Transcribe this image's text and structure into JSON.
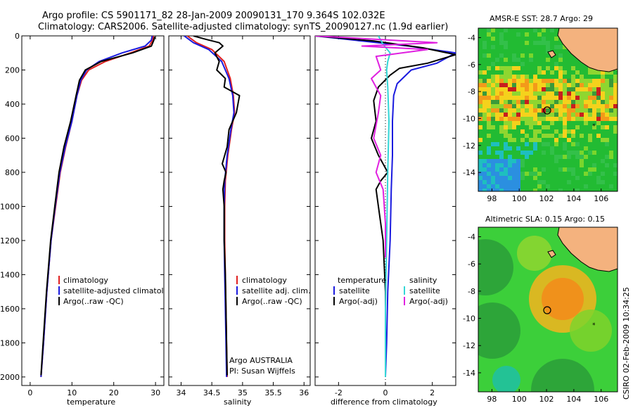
{
  "header": {
    "line1": "Argo profile: CS 5901171_82 28-Jan-2009 20090131_170 9.364S 102.032E",
    "line2": "Climatology: CARS2006. Satellite-adjusted climatology: synTS_20090127.nc (1.9d earlier)"
  },
  "side_label": "CSIRO 02-Feb-2009 10:34:25",
  "colors": {
    "clim": "#e02020",
    "sat": "#1a1adf",
    "argo": "#000000",
    "sal_sat": "#33d6d6",
    "sal_argo": "#e020e0"
  },
  "chart_data": [
    {
      "type": "line",
      "id": "temperature",
      "xlabel": "temperature",
      "xlim": [
        -2,
        32
      ],
      "ylim": [
        2050,
        0
      ],
      "xticks": [
        0,
        10,
        20,
        30
      ],
      "yticks": [
        0,
        200,
        400,
        600,
        800,
        1000,
        1200,
        1400,
        1600,
        1800,
        2000
      ],
      "legend": [
        "climatology",
        "satellite-adjusted climatology",
        "Argo(..raw -QC)"
      ],
      "series": [
        {
          "name": "climatology",
          "color_key": "clim",
          "x": [
            29.5,
            29.3,
            28.5,
            24,
            18,
            14,
            12.3,
            11.2,
            10,
            8.5,
            7.2,
            6.1,
            5,
            4,
            3.2,
            2.6
          ],
          "y": [
            0,
            25,
            60,
            100,
            150,
            200,
            260,
            350,
            500,
            650,
            800,
            1000,
            1200,
            1500,
            1800,
            2000
          ]
        },
        {
          "name": "satellite-adjusted climatology",
          "color_key": "sat",
          "x": [
            29.2,
            29,
            27.5,
            22,
            16.5,
            13.5,
            12.1,
            11.2,
            10,
            8.4,
            7.1,
            6,
            5,
            4,
            3.2,
            2.6
          ],
          "y": [
            0,
            25,
            60,
            100,
            150,
            200,
            260,
            350,
            500,
            650,
            800,
            1000,
            1200,
            1500,
            1800,
            2000
          ]
        },
        {
          "name": "Argo(..raw -QC)",
          "color_key": "argo",
          "x": [
            29.8,
            29.6,
            29,
            24.5,
            17,
            13.2,
            11.8,
            11,
            9.7,
            8.1,
            6.9,
            5.9,
            4.9,
            3.9,
            3.1,
            2.6
          ],
          "y": [
            5,
            25,
            60,
            100,
            150,
            200,
            260,
            350,
            500,
            650,
            800,
            1000,
            1200,
            1500,
            1800,
            1990
          ]
        }
      ]
    },
    {
      "type": "line",
      "id": "salinity",
      "xlabel": "salinity",
      "xlim": [
        33.8,
        36.1
      ],
      "ylim": [
        2050,
        0
      ],
      "xticks": [
        34,
        34.5,
        35,
        35.5,
        36
      ],
      "legend": [
        "climatology",
        "satellite adj. clim.",
        "Argo(..raw -QC)"
      ],
      "annotation": [
        "Argo AUSTRALIA",
        "PI: Susan Wijffels"
      ],
      "series": [
        {
          "name": "climatology",
          "color_key": "clim",
          "x": [
            34.1,
            34.25,
            34.5,
            34.7,
            34.8,
            34.85,
            34.87,
            34.82,
            34.76,
            34.72,
            34.71,
            34.71,
            34.72,
            34.73,
            34.74,
            34.75
          ],
          "y": [
            0,
            40,
            80,
            150,
            250,
            350,
            450,
            550,
            700,
            850,
            1000,
            1200,
            1400,
            1600,
            1800,
            2000
          ]
        },
        {
          "name": "satellite adj. clim.",
          "color_key": "sat",
          "x": [
            34.05,
            34.2,
            34.45,
            34.66,
            34.78,
            34.84,
            34.86,
            34.81,
            34.75,
            34.71,
            34.7,
            34.7,
            34.71,
            34.72,
            34.73,
            34.74
          ],
          "y": [
            0,
            40,
            80,
            150,
            250,
            350,
            450,
            550,
            700,
            850,
            1000,
            1200,
            1400,
            1600,
            1800,
            2000
          ]
        },
        {
          "name": "Argo(..raw -QC)",
          "color_key": "argo",
          "x": [
            34.2,
            34.4,
            34.62,
            34.68,
            34.55,
            34.62,
            34.58,
            34.72,
            34.7,
            34.95,
            34.9,
            34.78,
            34.75,
            34.67,
            34.73,
            34.7,
            34.68,
            34.7,
            34.7,
            34.72,
            34.73,
            34.74,
            34.75
          ],
          "y": [
            0,
            20,
            40,
            60,
            100,
            150,
            200,
            250,
            300,
            350,
            450,
            550,
            650,
            750,
            800,
            850,
            900,
            1000,
            1200,
            1400,
            1600,
            1800,
            1990
          ]
        }
      ]
    },
    {
      "type": "line",
      "id": "difference",
      "xlabel": "difference from climatology",
      "xlim": [
        -3,
        3
      ],
      "ylim": [
        2050,
        0
      ],
      "xticks": [
        -2,
        0,
        2
      ],
      "legend_left": {
        "title": "temperature",
        "items": [
          "satellite",
          "Argo(-adj)"
        ]
      },
      "legend_right": {
        "title": "salinity",
        "items": [
          "satellite",
          "Argo(-adj)"
        ]
      },
      "series": [
        {
          "name": "temperature satellite",
          "color_key": "sat",
          "x": [
            -3,
            -1,
            1,
            3,
            2.2,
            1.1,
            0.5,
            0.35,
            0.3,
            0.3,
            0.25,
            0.2,
            0.1,
            0.05,
            0
          ],
          "y": [
            0,
            30,
            60,
            100,
            160,
            200,
            280,
            350,
            500,
            700,
            900,
            1200,
            1500,
            1800,
            2000
          ]
        },
        {
          "name": "temperature Argo(-adj)",
          "color_key": "argo",
          "x": [
            -3,
            -0.5,
            1.6,
            3,
            1.8,
            0.6,
            0.2,
            -0.3,
            -0.5,
            -0.4,
            -0.6,
            -0.3,
            0.1,
            -0.2,
            -0.4,
            -0.3,
            -0.1,
            0,
            0
          ],
          "y": [
            0,
            30,
            70,
            110,
            160,
            190,
            230,
            300,
            380,
            500,
            600,
            700,
            800,
            850,
            900,
            1000,
            1200,
            1500,
            2000
          ]
        },
        {
          "name": "salinity satellite",
          "color_key": "sal_sat",
          "x": [
            -0.3,
            -0.1,
            0.2,
            0.1,
            0.05,
            0.1,
            0.15,
            0.1,
            0.05,
            0,
            0
          ],
          "y": [
            0,
            50,
            100,
            150,
            200,
            300,
            500,
            800,
            1200,
            1600,
            2000
          ]
        },
        {
          "name": "salinity Argo(-adj)",
          "color_key": "sal_argo",
          "x": [
            -3,
            2.2,
            -1,
            1.8,
            -0.4,
            -0.2,
            -0.6,
            -0.2,
            -0.3,
            -0.5,
            -0.2,
            -0.4,
            -0.1,
            0,
            0
          ],
          "y": [
            0,
            40,
            60,
            80,
            120,
            200,
            250,
            350,
            450,
            600,
            700,
            800,
            900,
            1100,
            1300
          ]
        }
      ]
    },
    {
      "type": "heatmap",
      "id": "sst_map",
      "title": "AMSR-E SST: 28.7 Argo: 29",
      "xlim": [
        97,
        107.2
      ],
      "ylim": [
        -15.4,
        -3.3
      ],
      "xticks": [
        98,
        100,
        102,
        104,
        106
      ],
      "yticks": [
        -4,
        -6,
        -8,
        -10,
        -12,
        -14
      ],
      "argo_position": [
        102.032,
        -9.364
      ]
    },
    {
      "type": "heatmap",
      "id": "sla_map",
      "title": "Altimetric SLA: 0.15 Argo: 0.15",
      "xlim": [
        97,
        107.2
      ],
      "ylim": [
        -15.4,
        -3.3
      ],
      "xticks": [
        98,
        100,
        102,
        104,
        106
      ],
      "yticks": [
        -4,
        -6,
        -8,
        -10,
        -12,
        -14
      ],
      "argo_position": [
        102.032,
        -9.364
      ]
    }
  ]
}
